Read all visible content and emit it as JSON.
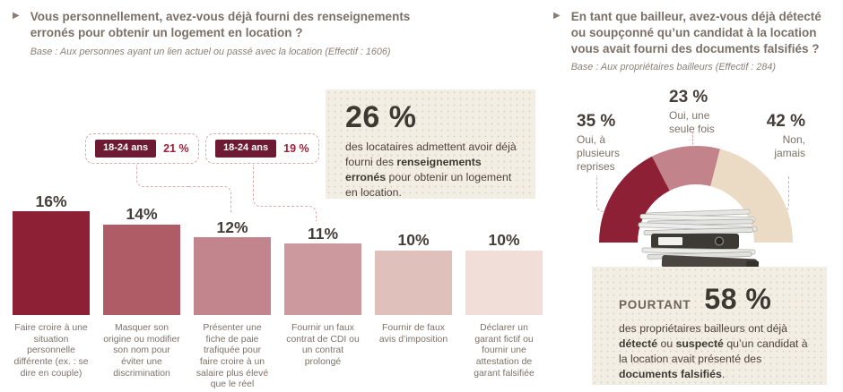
{
  "accent_colors": {
    "dark_maroon": "#8e2036",
    "chip_maroon": "#6d1a34",
    "callout_red": "#9e2038",
    "dashed_rose": "#d8abaf",
    "beige_box": "#f2eee4",
    "taupe_text": "#7d7268",
    "dark_text": "#3e3833"
  },
  "chart_data": [
    {
      "type": "bar",
      "title": "Vous personnellement, avez-vous déjà fourni des renseignements erronés pour obtenir un logement en location ?",
      "base_note": "Base : Aux personnes ayant un lien actuel ou passé avec la location (Effectif : 1606)",
      "categories": [
        "Faire croire à une situation personnelle différente (ex. : se dire en couple)",
        "Masquer son origine ou modifier son nom pour éviter une discrimination",
        "Présenter une fiche de paie trafiquée pour faire croire à un salaire plus élevé que le réel",
        "Fournir un faux contrat de CDI ou un contrat prolongé",
        "Fournir de faux avis d’imposition",
        "Déclarer un garant fictif ou fournir une attestation de garant falsifiée"
      ],
      "values": [
        16,
        14,
        12,
        11,
        10,
        10
      ],
      "value_labels": [
        "16%",
        "14%",
        "12%",
        "11%",
        "10%",
        "10%"
      ],
      "bar_colors": [
        "#8e2036",
        "#b05c66",
        "#c3858d",
        "#cc9a9e",
        "#dfc0ba",
        "#f2ded8"
      ],
      "ylim": [
        0,
        16
      ],
      "grid": false,
      "annotations": [
        {
          "group": "18-24 ans",
          "value": 21,
          "label": "21 %",
          "target_category_index": 2
        },
        {
          "group": "18-24 ans",
          "value": 19,
          "label": "19 %",
          "target_category_index": 3
        }
      ]
    },
    {
      "type": "pie",
      "subtype": "half-donut",
      "title": "En tant que bailleur, avez-vous déjà détecté ou soupçonné qu’un candidat à la location vous avait fourni des documents falsifiés ?",
      "base_note": "Base : Aux propriétaires bailleurs (Effectif : 284)",
      "categories": [
        "Oui, à plusieurs reprises",
        "Oui, une seule fois",
        "Non, jamais"
      ],
      "values": [
        35,
        23,
        42
      ],
      "value_labels": [
        "35 %",
        "23 %",
        "42 %"
      ],
      "colors": [
        "#8e2036",
        "#c2838a",
        "#ebdbc5"
      ],
      "legend": "labels around arc"
    }
  ],
  "left": {
    "highlight": {
      "value": "26 %",
      "rich": [
        [
          "des locataires admettent avoir déjà fourni des ",
          0
        ],
        [
          "renseignements erronés",
          1
        ],
        [
          " pour obtenir un logement en location.",
          0
        ]
      ]
    }
  },
  "right": {
    "pourtant": {
      "word": "POURTANT",
      "value": "58 %",
      "rich": [
        [
          "des propriétaires bailleurs ont déjà ",
          0
        ],
        [
          "détecté",
          1
        ],
        [
          " ou ",
          0
        ],
        [
          "suspecté",
          1
        ],
        [
          " qu’un candidat à la location avait présenté des ",
          0
        ],
        [
          "documents falsifiés",
          1
        ],
        [
          ".",
          0
        ]
      ]
    },
    "illustration": "stack-of-documents-and-binders"
  }
}
